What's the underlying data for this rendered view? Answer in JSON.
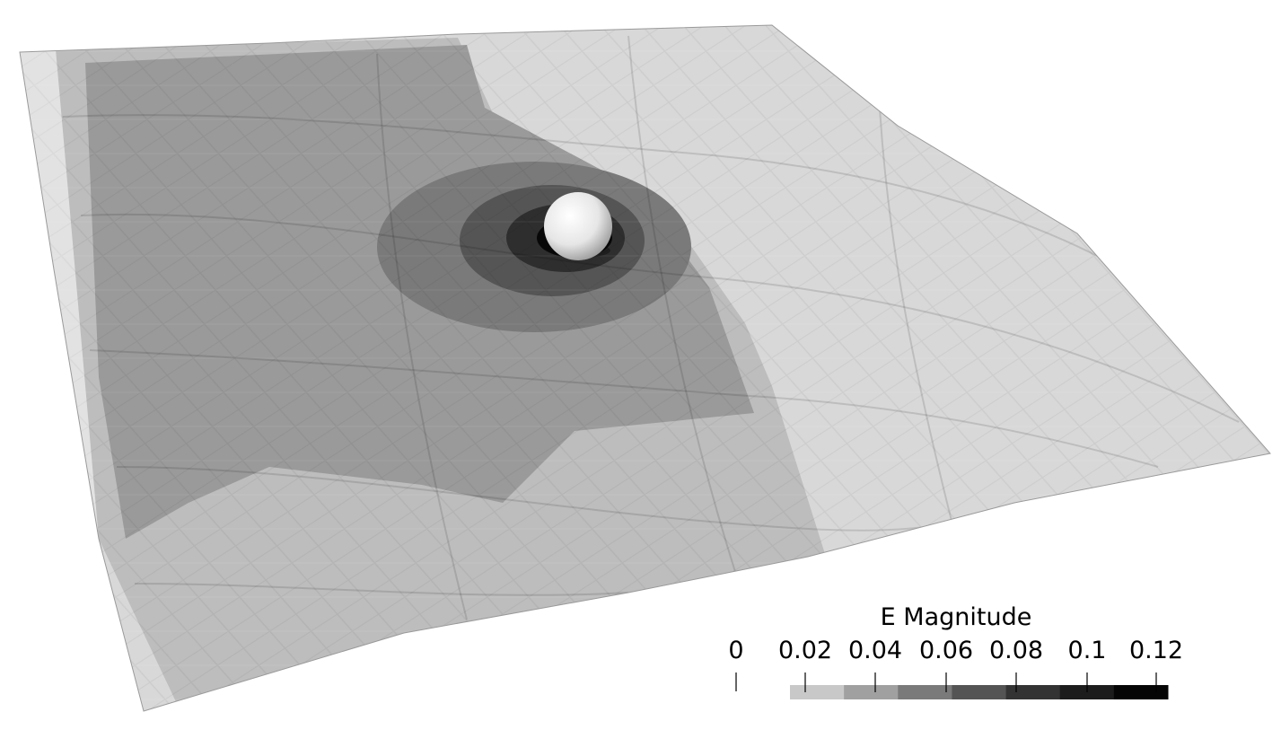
{
  "legend": {
    "title": "E Magnitude",
    "min_label": "0",
    "ticks": [
      "0.02",
      "0.04",
      "0.06",
      "0.08",
      "0.1",
      "0.12"
    ],
    "bands": [
      "#c8c8c8",
      "#a0a0a0",
      "#7a7a7a",
      "#545454",
      "#333333",
      "#1c1c1c",
      "#050505"
    ]
  },
  "scene": {
    "surface_colors": {
      "outer": "#d8d8d8",
      "band1": "#bdbdbd",
      "band2": "#9a9a9a",
      "band3": "#7a7a7a",
      "band4": "#555555",
      "band5": "#2e2e2e",
      "core": "#080808"
    },
    "sphere_color": "#f2f2f2"
  }
}
